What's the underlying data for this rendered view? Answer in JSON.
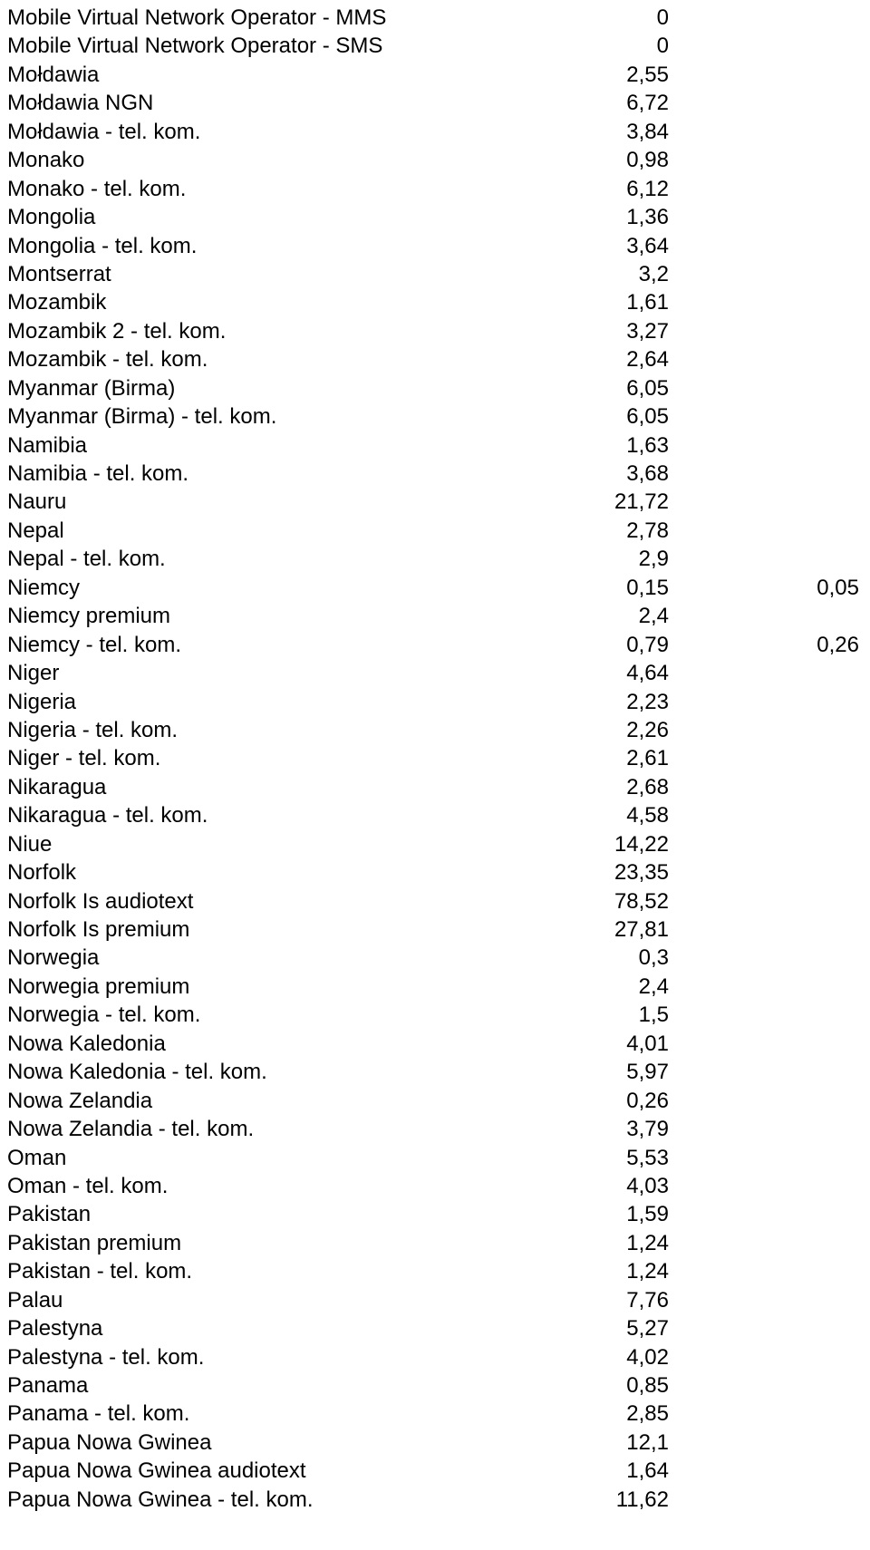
{
  "rows": [
    {
      "name": "Mobile Virtual Network Operator - MMS",
      "v1": "0",
      "v2": ""
    },
    {
      "name": "Mobile Virtual Network Operator - SMS",
      "v1": "0",
      "v2": ""
    },
    {
      "name": "Mołdawia",
      "v1": "2,55",
      "v2": ""
    },
    {
      "name": "Mołdawia NGN",
      "v1": "6,72",
      "v2": ""
    },
    {
      "name": "Mołdawia - tel. kom.",
      "v1": "3,84",
      "v2": ""
    },
    {
      "name": "Monako",
      "v1": "0,98",
      "v2": ""
    },
    {
      "name": "Monako - tel. kom.",
      "v1": "6,12",
      "v2": ""
    },
    {
      "name": "Mongolia",
      "v1": "1,36",
      "v2": ""
    },
    {
      "name": "Mongolia - tel. kom.",
      "v1": "3,64",
      "v2": ""
    },
    {
      "name": "Montserrat",
      "v1": "3,2",
      "v2": ""
    },
    {
      "name": "Mozambik",
      "v1": "1,61",
      "v2": ""
    },
    {
      "name": "Mozambik 2 - tel. kom.",
      "v1": "3,27",
      "v2": ""
    },
    {
      "name": "Mozambik - tel. kom.",
      "v1": "2,64",
      "v2": ""
    },
    {
      "name": "Myanmar (Birma)",
      "v1": "6,05",
      "v2": ""
    },
    {
      "name": "Myanmar (Birma) - tel. kom.",
      "v1": "6,05",
      "v2": ""
    },
    {
      "name": "Namibia",
      "v1": "1,63",
      "v2": ""
    },
    {
      "name": "Namibia - tel. kom.",
      "v1": "3,68",
      "v2": ""
    },
    {
      "name": "Nauru",
      "v1": "21,72",
      "v2": ""
    },
    {
      "name": "Nepal",
      "v1": "2,78",
      "v2": ""
    },
    {
      "name": "Nepal - tel. kom.",
      "v1": "2,9",
      "v2": ""
    },
    {
      "name": "Niemcy",
      "v1": "0,15",
      "v2": "0,05"
    },
    {
      "name": "Niemcy premium",
      "v1": "2,4",
      "v2": ""
    },
    {
      "name": "Niemcy - tel. kom.",
      "v1": "0,79",
      "v2": "0,26"
    },
    {
      "name": "Niger",
      "v1": "4,64",
      "v2": ""
    },
    {
      "name": "Nigeria",
      "v1": "2,23",
      "v2": ""
    },
    {
      "name": "Nigeria - tel. kom.",
      "v1": "2,26",
      "v2": ""
    },
    {
      "name": "Niger - tel. kom.",
      "v1": "2,61",
      "v2": ""
    },
    {
      "name": "Nikaragua",
      "v1": "2,68",
      "v2": ""
    },
    {
      "name": "Nikaragua - tel. kom.",
      "v1": "4,58",
      "v2": ""
    },
    {
      "name": "Niue",
      "v1": "14,22",
      "v2": ""
    },
    {
      "name": "Norfolk",
      "v1": "23,35",
      "v2": ""
    },
    {
      "name": "Norfolk Is audiotext",
      "v1": "78,52",
      "v2": ""
    },
    {
      "name": "Norfolk Is premium",
      "v1": "27,81",
      "v2": ""
    },
    {
      "name": "Norwegia",
      "v1": "0,3",
      "v2": ""
    },
    {
      "name": "Norwegia premium",
      "v1": "2,4",
      "v2": ""
    },
    {
      "name": "Norwegia - tel. kom.",
      "v1": "1,5",
      "v2": ""
    },
    {
      "name": "Nowa Kaledonia",
      "v1": "4,01",
      "v2": ""
    },
    {
      "name": "Nowa Kaledonia - tel. kom.",
      "v1": "5,97",
      "v2": ""
    },
    {
      "name": "Nowa Zelandia",
      "v1": "0,26",
      "v2": ""
    },
    {
      "name": "Nowa Zelandia - tel. kom.",
      "v1": "3,79",
      "v2": ""
    },
    {
      "name": "Oman",
      "v1": "5,53",
      "v2": ""
    },
    {
      "name": "Oman - tel. kom.",
      "v1": "4,03",
      "v2": ""
    },
    {
      "name": "Pakistan",
      "v1": "1,59",
      "v2": ""
    },
    {
      "name": "Pakistan premium",
      "v1": "1,24",
      "v2": ""
    },
    {
      "name": "Pakistan - tel. kom.",
      "v1": "1,24",
      "v2": ""
    },
    {
      "name": "Palau",
      "v1": "7,76",
      "v2": ""
    },
    {
      "name": "Palestyna",
      "v1": "5,27",
      "v2": ""
    },
    {
      "name": "Palestyna - tel. kom.",
      "v1": "4,02",
      "v2": ""
    },
    {
      "name": "Panama",
      "v1": "0,85",
      "v2": ""
    },
    {
      "name": "Panama - tel. kom.",
      "v1": "2,85",
      "v2": ""
    },
    {
      "name": "Papua Nowa Gwinea",
      "v1": "12,1",
      "v2": ""
    },
    {
      "name": "Papua Nowa Gwinea audiotext",
      "v1": "1,64",
      "v2": ""
    },
    {
      "name": "Papua Nowa Gwinea - tel. kom.",
      "v1": "11,62",
      "v2": ""
    }
  ]
}
